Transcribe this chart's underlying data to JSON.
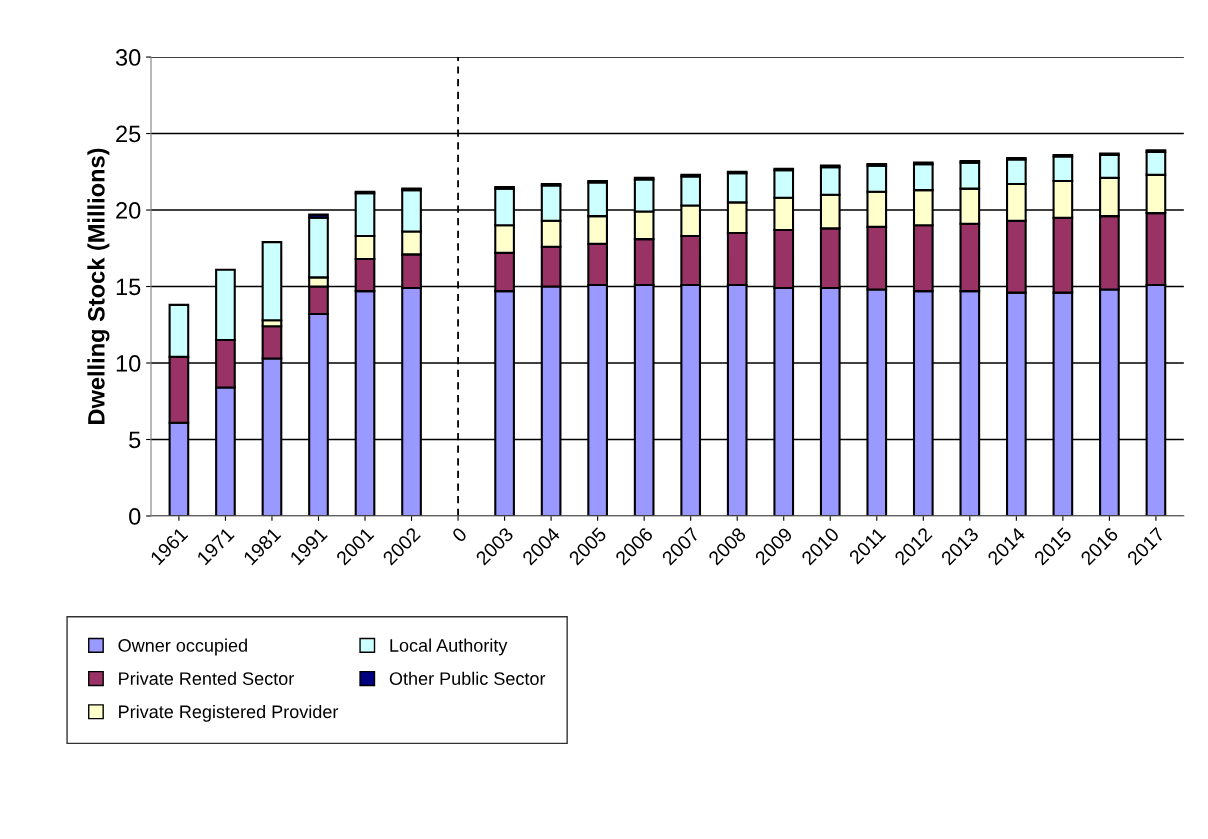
{
  "chart_data": {
    "type": "bar",
    "stacked": true,
    "ylabel": "Dwelling Stock (Millions)",
    "categories": [
      "1961",
      "1971",
      "1981",
      "1991",
      "2001",
      "2002",
      "0",
      "2003",
      "2004",
      "2005",
      "2006",
      "2007",
      "2008",
      "2009",
      "2010",
      "2011",
      "2012",
      "2013",
      "2014",
      "2015",
      "2016",
      "2017"
    ],
    "series": [
      {
        "name": "Owner occupied",
        "color": "#9999ff",
        "values": [
          6.1,
          8.4,
          10.3,
          13.2,
          14.7,
          14.9,
          null,
          14.7,
          15.0,
          15.1,
          15.1,
          15.1,
          15.1,
          14.9,
          14.9,
          14.8,
          14.7,
          14.7,
          14.6,
          14.6,
          14.8,
          15.1
        ]
      },
      {
        "name": "Private Rented Sector",
        "color": "#993366",
        "values": [
          4.3,
          3.1,
          2.1,
          1.8,
          2.1,
          2.2,
          null,
          2.5,
          2.6,
          2.7,
          3.0,
          3.2,
          3.4,
          3.8,
          3.9,
          4.1,
          4.3,
          4.4,
          4.7,
          4.9,
          4.8,
          4.7
        ]
      },
      {
        "name": "Private Registered Provider",
        "color": "#ffffcc",
        "values": [
          null,
          null,
          0.4,
          0.6,
          1.5,
          1.5,
          null,
          1.8,
          1.7,
          1.8,
          1.8,
          2.0,
          2.0,
          2.1,
          2.2,
          2.3,
          2.3,
          2.3,
          2.4,
          2.4,
          2.5,
          2.5
        ]
      },
      {
        "name": "Local Authority",
        "color": "#ccffff",
        "values": [
          3.4,
          4.6,
          5.1,
          3.9,
          2.8,
          2.7,
          null,
          2.4,
          2.3,
          2.2,
          2.1,
          1.9,
          1.9,
          1.8,
          1.8,
          1.7,
          1.7,
          1.7,
          1.6,
          1.6,
          1.5,
          1.5
        ]
      },
      {
        "name": "Other Public Sector",
        "color": "#000080",
        "values": [
          null,
          null,
          null,
          0.2,
          0.1,
          0.1,
          null,
          0.1,
          0.1,
          0.1,
          0.1,
          0.1,
          0.1,
          0.1,
          0.1,
          0.1,
          0.1,
          0.1,
          0.1,
          0.1,
          0.1,
          0.1
        ]
      }
    ],
    "ylim": [
      0,
      30
    ],
    "yticks": [
      0,
      5,
      10,
      15,
      20,
      25,
      30
    ],
    "grid": "y",
    "legend": "bottom",
    "ref_lines": [
      {
        "axis": "x",
        "value": "0",
        "color": "#000000",
        "line_style": "dashed"
      }
    ]
  }
}
